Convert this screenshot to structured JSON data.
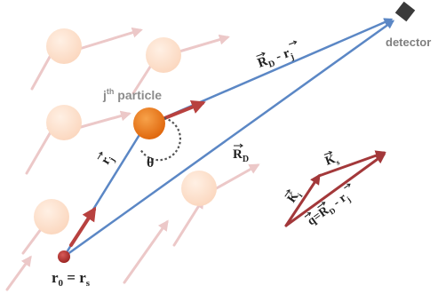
{
  "labels": {
    "detector": "detector",
    "particle_j": "j",
    "particle_sup": "th",
    "particle_word": " particle",
    "r0": "r",
    "r0_sub": "0",
    "r0_eq": " = r",
    "r0_sub_s": "s",
    "rj_letter": "r",
    "rj_sub": "j",
    "theta": "θ",
    "RD_letter": "R",
    "RD_sub": "D",
    "RDrj_R": "R",
    "RDrj_Rsub": "D",
    "RDrj_minus": " - r",
    "RDrj_rsub": "j",
    "Ki_letter": "K",
    "Ki_sub": "i",
    "Ks_letter": "K",
    "Ks_sub": "s",
    "q_letter": "q",
    "q_eq": "=R",
    "q_Rsub": "D",
    "q_minus": " - r",
    "q_rsub": "j"
  },
  "colors": {
    "beam_arrow": "#b8413f",
    "faint_arrow": "#ecc8c8",
    "path": "#5b87c5",
    "particle": "#ee7c1d",
    "faint_particle": "#fde0cc",
    "source": "#b5312e",
    "detector": "#3a3a3a",
    "detector_text": "#7f7f7f",
    "particle_text": "#8c8c8c",
    "text": "#222222"
  }
}
